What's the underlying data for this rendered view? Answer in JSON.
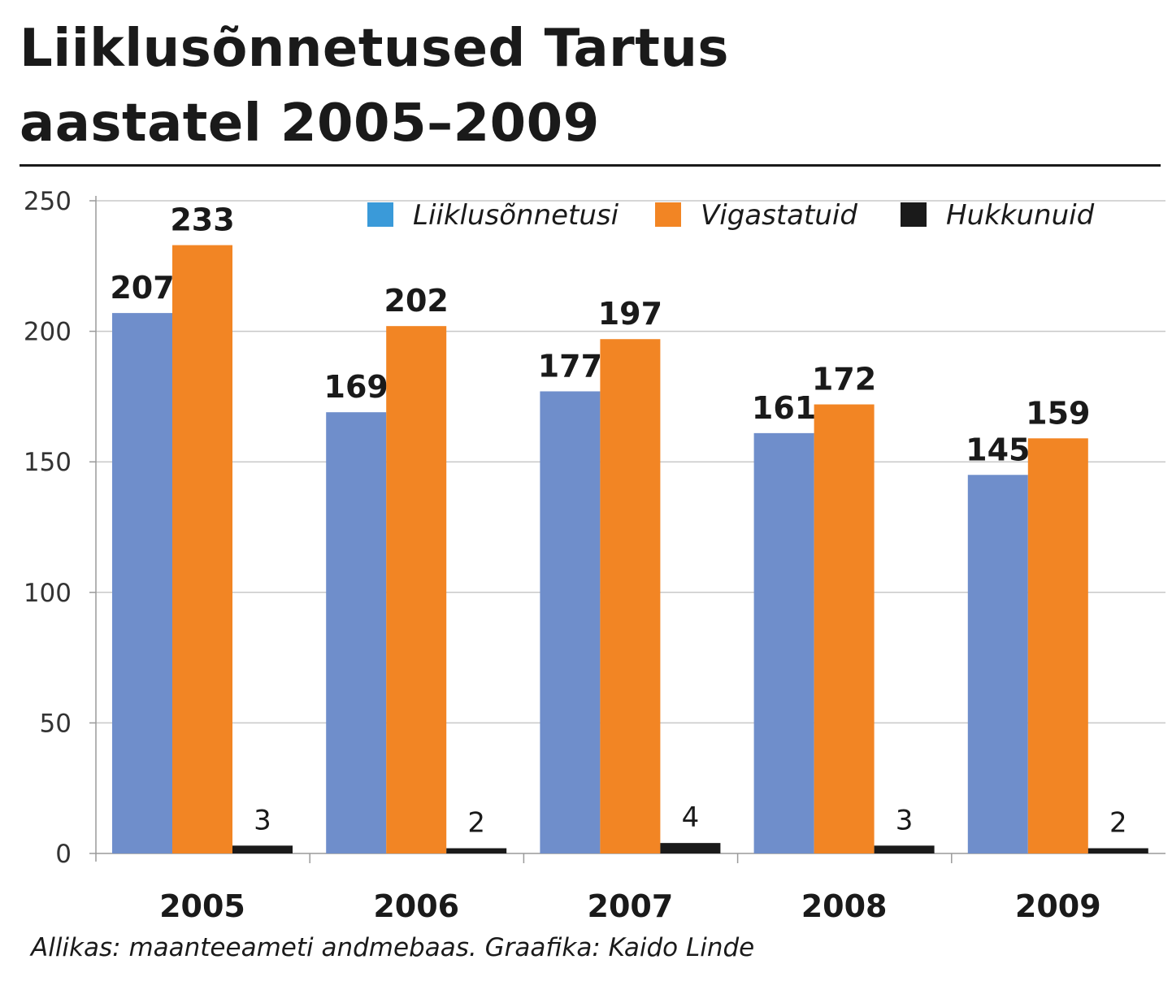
{
  "title_line1": "Liiklusõnnetused Tartus",
  "title_line2": "aastatel 2005–2009",
  "source": "Allikas: maanteeameti andmebaas. Graafika: Kaido Linde",
  "chart_data": {
    "type": "bar",
    "categories": [
      "2005",
      "2006",
      "2007",
      "2008",
      "2009"
    ],
    "series": [
      {
        "name": "Liiklusõnnetusi",
        "values": [
          207,
          169,
          177,
          161,
          145
        ],
        "color": "#6f8ecb",
        "legend_color": "#3a9ad9"
      },
      {
        "name": "Vigastatuid",
        "values": [
          233,
          202,
          197,
          172,
          159
        ],
        "color": "#f28524",
        "legend_color": "#f28524"
      },
      {
        "name": "Hukkunuid",
        "values": [
          3,
          2,
          4,
          3,
          2
        ],
        "color": "#1a1a1a",
        "legend_color": "#1a1a1a"
      }
    ],
    "ylim": [
      0,
      250
    ],
    "yticks": [
      0,
      50,
      100,
      150,
      200,
      250
    ],
    "grid": true,
    "legend_position": "top"
  }
}
